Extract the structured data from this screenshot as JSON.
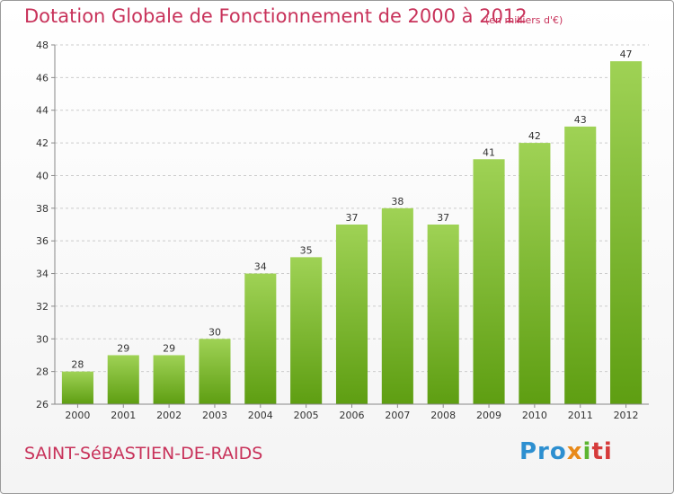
{
  "header": {
    "title": "Dotation Globale de Fonctionnement de 2000 à 2012",
    "unit": "(en milliers d'€)"
  },
  "footer": {
    "commune": "SAINT-SéBASTIEN-DE-RAIDS",
    "logo_parts": [
      "Pro",
      "x",
      "i",
      "ti"
    ]
  },
  "colors": {
    "title": "#c8325a",
    "bar_top": "#9fd255",
    "bar_bottom": "#5e9e12",
    "grid": "#cccccc"
  },
  "chart_data": {
    "type": "bar",
    "categories": [
      "2000",
      "2001",
      "2002",
      "2003",
      "2004",
      "2005",
      "2006",
      "2007",
      "2008",
      "2009",
      "2010",
      "2011",
      "2012"
    ],
    "values": [
      28,
      29,
      29,
      30,
      34,
      35,
      37,
      38,
      37,
      41,
      42,
      43,
      47
    ],
    "data_labels": [
      "28",
      "29",
      "29",
      "30",
      "34",
      "35",
      "37",
      "38",
      "37",
      "41",
      "42",
      "43",
      "47"
    ],
    "y_ticks": [
      "26",
      "28",
      "30",
      "32",
      "34",
      "36",
      "38",
      "40",
      "42",
      "44",
      "46",
      "48"
    ],
    "ylim": [
      26,
      48
    ],
    "grid": true,
    "grid_style": "dashed horizontal",
    "title": "Dotation Globale de Fonctionnement de 2000 à 2012",
    "xlabel": "",
    "ylabel": ""
  }
}
